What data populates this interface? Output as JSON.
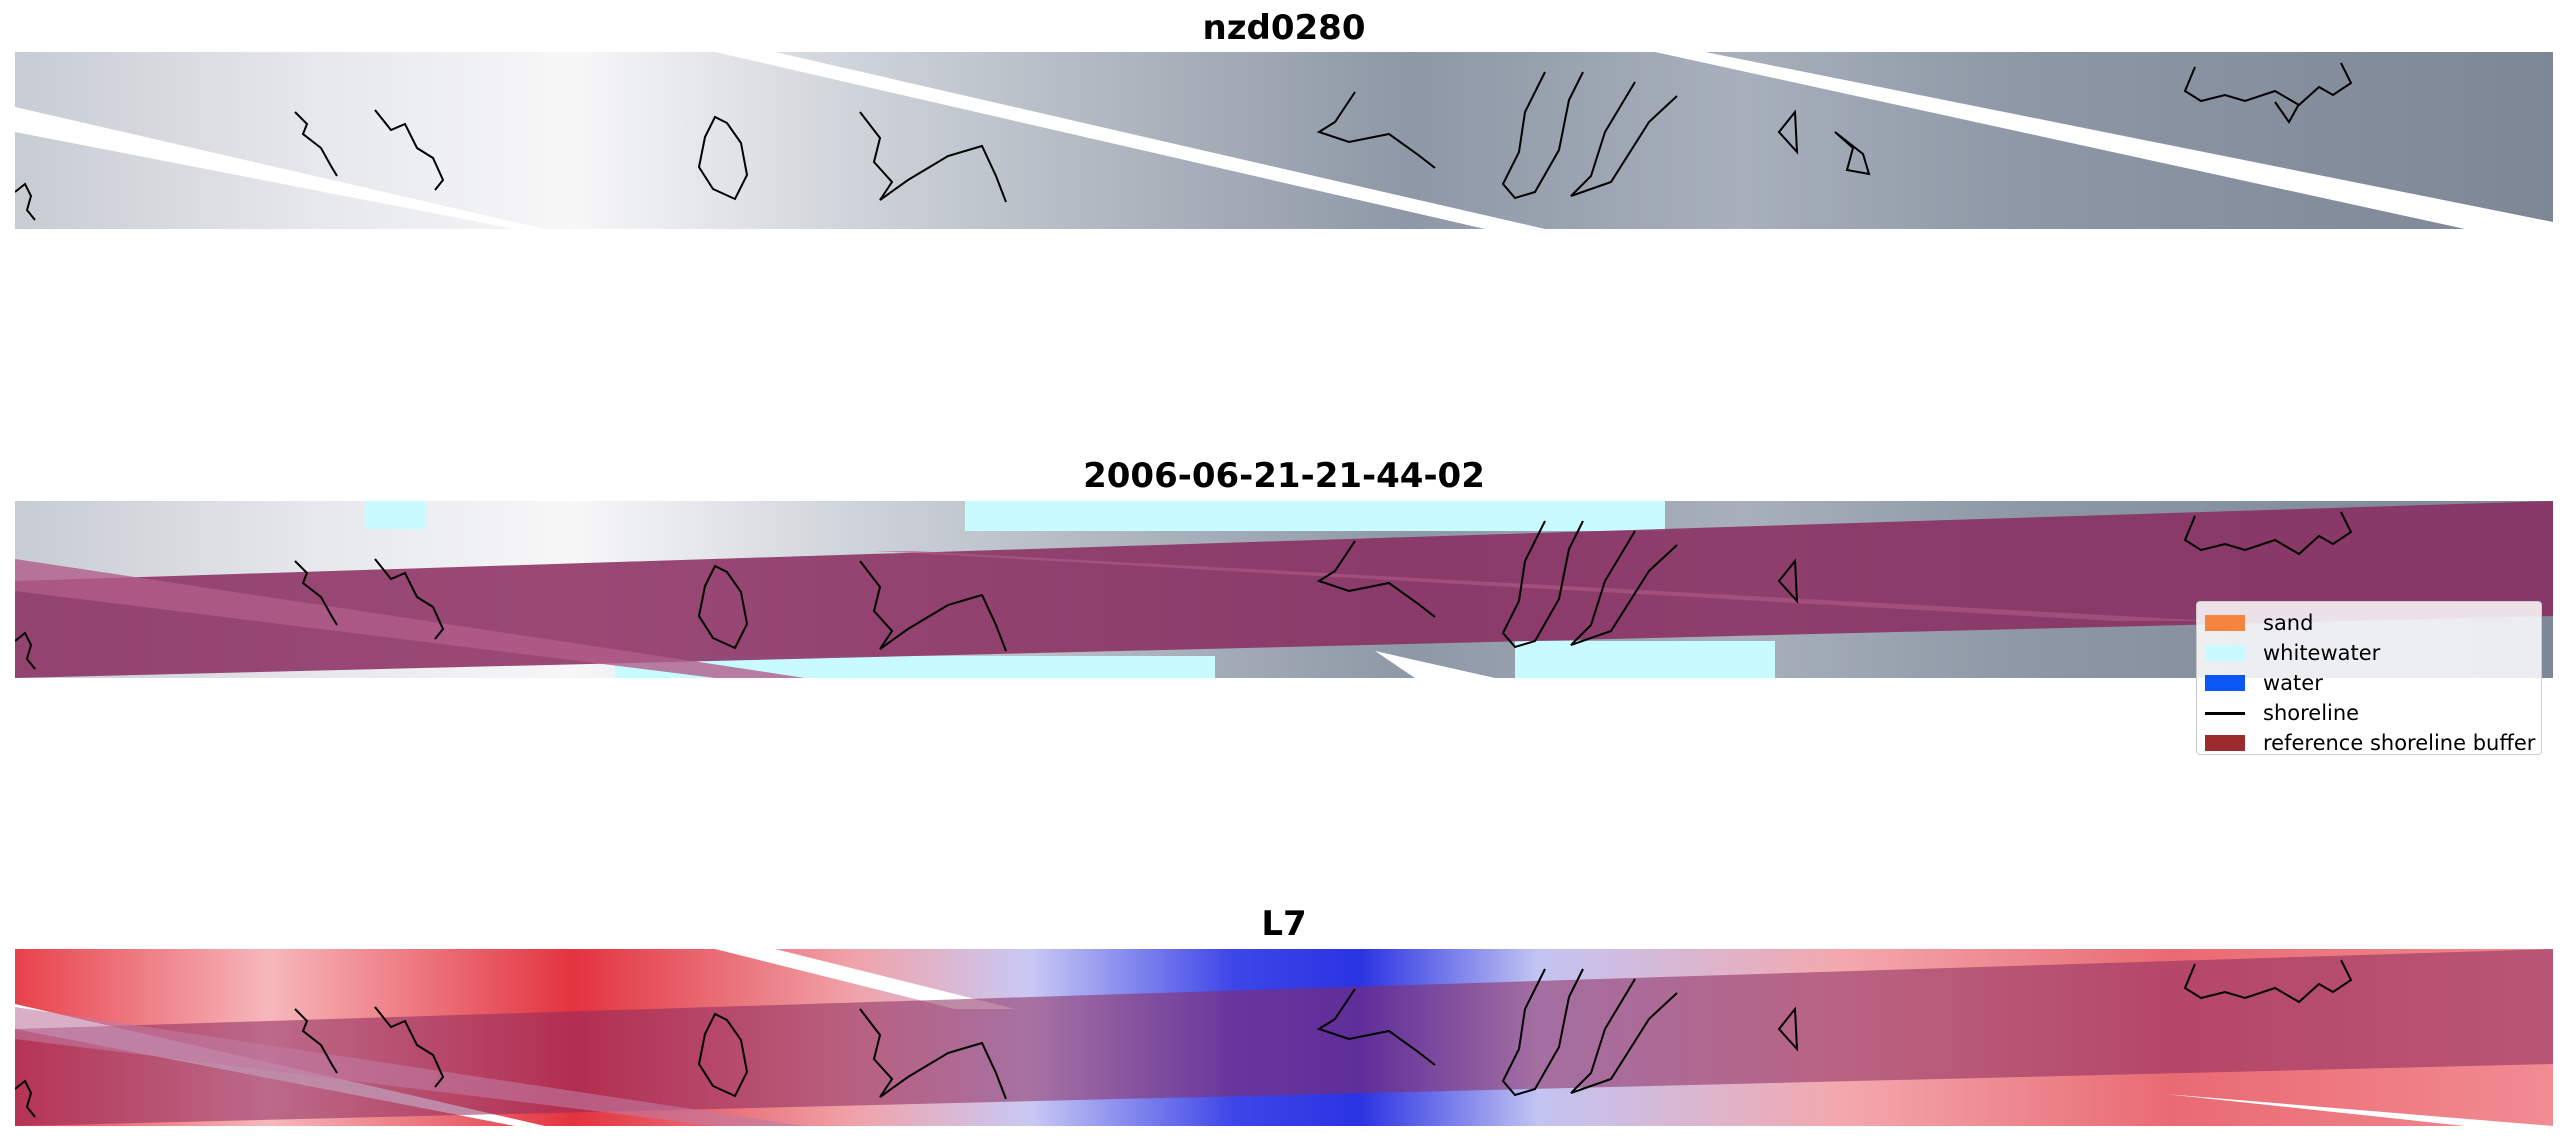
{
  "panels": [
    {
      "title": "nzd0280",
      "layer": "rgb"
    },
    {
      "title": "2006-06-21-21-44-02",
      "layer": "classified"
    },
    {
      "title": "L7",
      "layer": "mndwi"
    }
  ],
  "legend": {
    "items": [
      {
        "label": "sand",
        "color": "#f4853f",
        "kind": "patch"
      },
      {
        "label": "whitewater",
        "color": "#c8fbff",
        "kind": "patch"
      },
      {
        "label": "water",
        "color": "#0a57f5",
        "kind": "patch"
      },
      {
        "label": "shoreline",
        "color": "#000000",
        "kind": "line"
      },
      {
        "label": "reference shoreline buffer",
        "color": "#9c2b2e",
        "kind": "patch"
      }
    ]
  },
  "colors": {
    "cloud_gray": "#9aa3b0",
    "cloud_white": "#ffffff",
    "buffer_overlay": "#8a2a5e",
    "index_red": "#d41f2b",
    "index_blue": "#1f2ad4"
  }
}
